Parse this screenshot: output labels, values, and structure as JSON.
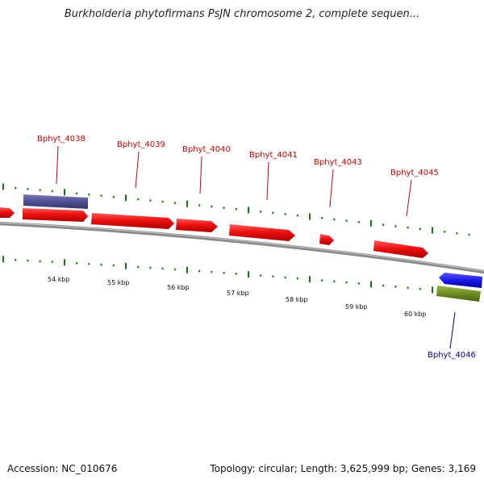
{
  "title": "Burkholderia phytofirmans PsJN chromosome 2, complete sequen...",
  "footer": {
    "accession": "Accession: NC_010676",
    "topology": "Topology: circular; Length: 3,625,999 bp; Genes: 3,169"
  },
  "colors": {
    "gene_forward": "#ee1111",
    "gene_blue": "#1a1ae6",
    "gene_purple": "#4e4e92",
    "gene_olive": "#6e8c22",
    "label_red": "#cc0000",
    "label_blue": "#000099",
    "tick": "#0a7a0a",
    "backbone": "#8a8a8a"
  },
  "scale_labels": [
    "54 kbp",
    "55 kbp",
    "56 kbp",
    "57 kbp",
    "58 kbp",
    "59 kbp",
    "60 kbp"
  ],
  "gene_labels": [
    {
      "text": "Bphyt_4038",
      "color": "red"
    },
    {
      "text": "Bphyt_4039",
      "color": "red"
    },
    {
      "text": "Bphyt_4040",
      "color": "red"
    },
    {
      "text": "Bphyt_4041",
      "color": "red"
    },
    {
      "text": "Bphyt_4043",
      "color": "red"
    },
    {
      "text": "Bphyt_4045",
      "color": "red"
    },
    {
      "text": "Bphyt_4046",
      "color": "blue"
    }
  ]
}
